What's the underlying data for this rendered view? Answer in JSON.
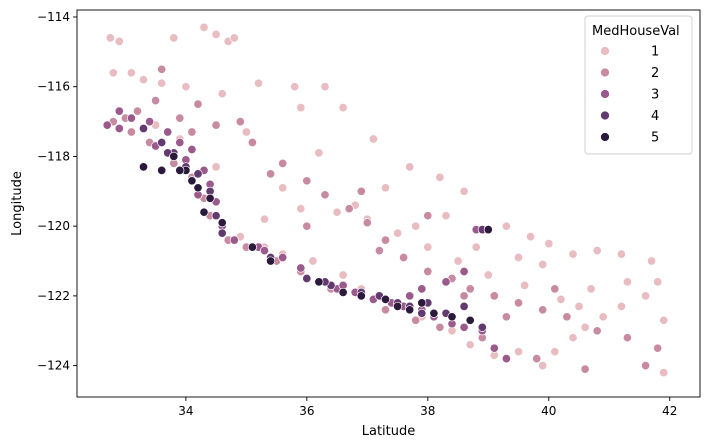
{
  "chart_data": {
    "type": "scatter",
    "title": "",
    "xlabel": "Latitude",
    "ylabel": "Longitude",
    "xlim": [
      32.2,
      42.5
    ],
    "ylim": [
      -124.9,
      -113.8
    ],
    "xticks": [
      34,
      36,
      38,
      40,
      42
    ],
    "yticks": [
      -114,
      -116,
      -118,
      -120,
      -122,
      -124
    ],
    "grid": false,
    "legend": {
      "title": "MedHouseVal",
      "placement": "top-right",
      "entries": [
        {
          "label": "1",
          "color": "#e8bcc0"
        },
        {
          "label": "2",
          "color": "#c88aa0"
        },
        {
          "label": "3",
          "color": "#9b5a8c"
        },
        {
          "label": "4",
          "color": "#633a70"
        },
        {
          "label": "5",
          "color": "#2b1a3c"
        }
      ]
    },
    "series": [
      {
        "name": "1",
        "points": [
          [
            32.75,
            -114.6
          ],
          [
            32.9,
            -114.7
          ],
          [
            33.8,
            -114.6
          ],
          [
            34.3,
            -114.3
          ],
          [
            34.5,
            -114.5
          ],
          [
            34.7,
            -114.7
          ],
          [
            34.8,
            -114.6
          ],
          [
            32.8,
            -115.6
          ],
          [
            33.1,
            -115.6
          ],
          [
            33.3,
            -115.8
          ],
          [
            33.6,
            -115.9
          ],
          [
            34.0,
            -116.0
          ],
          [
            34.6,
            -116.2
          ],
          [
            35.2,
            -115.9
          ],
          [
            35.8,
            -116.0
          ],
          [
            35.9,
            -116.6
          ],
          [
            36.3,
            -116.0
          ],
          [
            36.6,
            -116.6
          ],
          [
            37.1,
            -117.5
          ],
          [
            37.7,
            -118.3
          ],
          [
            38.2,
            -118.6
          ],
          [
            38.6,
            -119.0
          ],
          [
            39.0,
            -120.1
          ],
          [
            39.3,
            -120.0
          ],
          [
            39.7,
            -120.3
          ],
          [
            40.0,
            -120.5
          ],
          [
            40.4,
            -120.8
          ],
          [
            40.8,
            -120.7
          ],
          [
            41.2,
            -120.8
          ],
          [
            41.3,
            -121.6
          ],
          [
            41.7,
            -121.0
          ],
          [
            41.8,
            -121.6
          ],
          [
            41.6,
            -122.0
          ],
          [
            41.2,
            -122.3
          ],
          [
            40.9,
            -122.6
          ],
          [
            40.6,
            -122.9
          ],
          [
            40.4,
            -123.2
          ],
          [
            40.1,
            -123.6
          ],
          [
            39.9,
            -124.0
          ],
          [
            39.5,
            -123.6
          ],
          [
            39.1,
            -123.7
          ],
          [
            38.7,
            -123.4
          ],
          [
            38.4,
            -123.0
          ],
          [
            37.9,
            -122.6
          ],
          [
            37.5,
            -122.3
          ],
          [
            36.9,
            -121.8
          ],
          [
            36.6,
            -121.4
          ],
          [
            36.1,
            -121.0
          ],
          [
            35.6,
            -120.8
          ],
          [
            35.3,
            -120.6
          ],
          [
            34.9,
            -120.3
          ],
          [
            35.3,
            -119.8
          ],
          [
            35.9,
            -119.5
          ],
          [
            36.5,
            -119.6
          ],
          [
            37.0,
            -119.8
          ],
          [
            37.5,
            -120.2
          ],
          [
            38.0,
            -120.6
          ],
          [
            38.5,
            -121.0
          ],
          [
            39.0,
            -121.4
          ],
          [
            39.6,
            -121.7
          ],
          [
            40.2,
            -122.1
          ],
          [
            40.5,
            -122.3
          ],
          [
            39.9,
            -121.1
          ],
          [
            38.8,
            -120.6
          ],
          [
            37.8,
            -120.0
          ],
          [
            36.8,
            -119.4
          ],
          [
            35.6,
            -118.9
          ],
          [
            34.5,
            -118.3
          ],
          [
            33.9,
            -117.5
          ],
          [
            33.5,
            -117.1
          ],
          [
            35.0,
            -117.3
          ],
          [
            36.2,
            -117.9
          ],
          [
            37.3,
            -118.9
          ],
          [
            38.3,
            -119.7
          ],
          [
            39.5,
            -120.9
          ],
          [
            40.7,
            -121.8
          ],
          [
            41.9,
            -122.7
          ],
          [
            41.9,
            -124.2
          ]
        ]
      },
      {
        "name": "2",
        "points": [
          [
            32.8,
            -117.0
          ],
          [
            33.0,
            -116.9
          ],
          [
            33.2,
            -116.7
          ],
          [
            33.5,
            -116.4
          ],
          [
            33.9,
            -116.9
          ],
          [
            34.1,
            -117.3
          ],
          [
            34.2,
            -116.5
          ],
          [
            34.5,
            -117.1
          ],
          [
            34.9,
            -117.0
          ],
          [
            35.1,
            -117.6
          ],
          [
            35.6,
            -118.2
          ],
          [
            36.0,
            -118.7
          ],
          [
            36.3,
            -119.1
          ],
          [
            36.7,
            -119.5
          ],
          [
            37.0,
            -119.9
          ],
          [
            37.3,
            -120.4
          ],
          [
            37.6,
            -120.9
          ],
          [
            38.0,
            -121.3
          ],
          [
            38.4,
            -121.5
          ],
          [
            38.7,
            -121.8
          ],
          [
            39.1,
            -122.0
          ],
          [
            39.5,
            -122.2
          ],
          [
            39.9,
            -122.4
          ],
          [
            40.3,
            -122.6
          ],
          [
            40.8,
            -123.0
          ],
          [
            41.3,
            -123.2
          ],
          [
            41.8,
            -123.5
          ],
          [
            41.6,
            -124.0
          ],
          [
            40.6,
            -124.1
          ],
          [
            39.8,
            -123.8
          ],
          [
            38.9,
            -123.2
          ],
          [
            38.2,
            -122.9
          ],
          [
            37.8,
            -122.7
          ],
          [
            37.3,
            -122.4
          ],
          [
            36.8,
            -121.9
          ],
          [
            36.4,
            -121.8
          ],
          [
            35.9,
            -121.3
          ],
          [
            35.5,
            -121.0
          ],
          [
            35.0,
            -120.6
          ],
          [
            34.7,
            -120.4
          ],
          [
            34.4,
            -119.7
          ],
          [
            34.3,
            -119.2
          ],
          [
            34.1,
            -118.6
          ],
          [
            33.8,
            -118.2
          ],
          [
            33.4,
            -117.6
          ],
          [
            33.1,
            -117.3
          ],
          [
            36.0,
            -120.0
          ],
          [
            37.2,
            -120.7
          ],
          [
            38.6,
            -122.0
          ],
          [
            39.3,
            -122.6
          ],
          [
            40.1,
            -121.8
          ],
          [
            38.0,
            -119.7
          ],
          [
            36.9,
            -119.0
          ],
          [
            35.4,
            -118.5
          ],
          [
            33.6,
            -115.5
          ]
        ]
      },
      {
        "name": "3",
        "points": [
          [
            32.7,
            -117.1
          ],
          [
            32.9,
            -117.2
          ],
          [
            33.1,
            -116.9
          ],
          [
            33.4,
            -117.0
          ],
          [
            33.7,
            -117.3
          ],
          [
            33.9,
            -117.6
          ],
          [
            34.1,
            -117.8
          ],
          [
            34.0,
            -118.1
          ],
          [
            34.3,
            -118.4
          ],
          [
            34.4,
            -118.8
          ],
          [
            34.5,
            -119.3
          ],
          [
            34.2,
            -119.1
          ],
          [
            34.6,
            -120.0
          ],
          [
            34.8,
            -120.4
          ],
          [
            35.2,
            -120.6
          ],
          [
            35.6,
            -120.9
          ],
          [
            35.9,
            -121.2
          ],
          [
            36.2,
            -121.6
          ],
          [
            36.5,
            -121.8
          ],
          [
            36.8,
            -121.9
          ],
          [
            37.1,
            -122.1
          ],
          [
            37.4,
            -122.2
          ],
          [
            37.6,
            -122.3
          ],
          [
            37.9,
            -122.4
          ],
          [
            38.1,
            -122.6
          ],
          [
            38.4,
            -122.8
          ],
          [
            38.6,
            -122.9
          ],
          [
            38.9,
            -123.0
          ],
          [
            39.1,
            -123.5
          ],
          [
            39.3,
            -123.8
          ],
          [
            38.8,
            -120.1
          ],
          [
            38.6,
            -121.3
          ],
          [
            38.3,
            -121.6
          ],
          [
            37.9,
            -121.8
          ],
          [
            37.7,
            -122.0
          ],
          [
            36.6,
            -121.7
          ],
          [
            35.3,
            -120.7
          ],
          [
            33.5,
            -117.7
          ],
          [
            32.9,
            -116.7
          ]
        ]
      },
      {
        "name": "4",
        "points": [
          [
            33.3,
            -117.2
          ],
          [
            33.6,
            -117.6
          ],
          [
            33.8,
            -117.9
          ],
          [
            34.0,
            -118.3
          ],
          [
            34.2,
            -118.5
          ],
          [
            34.4,
            -119.0
          ],
          [
            34.5,
            -119.7
          ],
          [
            34.6,
            -120.2
          ],
          [
            35.4,
            -120.9
          ],
          [
            36.0,
            -121.5
          ],
          [
            36.4,
            -121.7
          ],
          [
            36.9,
            -121.9
          ],
          [
            37.2,
            -122.0
          ],
          [
            37.5,
            -122.2
          ],
          [
            37.7,
            -122.3
          ],
          [
            37.9,
            -122.5
          ],
          [
            38.0,
            -122.2
          ],
          [
            38.3,
            -122.5
          ],
          [
            38.6,
            -122.3
          ],
          [
            38.9,
            -122.9
          ],
          [
            38.9,
            -120.1
          ],
          [
            33.7,
            -117.9
          ],
          [
            36.3,
            -121.6
          ]
        ]
      },
      {
        "name": "5",
        "points": [
          [
            33.3,
            -118.3
          ],
          [
            33.6,
            -118.4
          ],
          [
            33.8,
            -118.0
          ],
          [
            34.0,
            -118.4
          ],
          [
            34.1,
            -118.7
          ],
          [
            34.2,
            -118.9
          ],
          [
            34.4,
            -119.2
          ],
          [
            34.3,
            -119.6
          ],
          [
            34.6,
            -119.9
          ],
          [
            35.1,
            -120.6
          ],
          [
            35.4,
            -121.0
          ],
          [
            36.2,
            -121.6
          ],
          [
            36.6,
            -121.9
          ],
          [
            36.9,
            -122.0
          ],
          [
            37.3,
            -122.1
          ],
          [
            37.5,
            -122.3
          ],
          [
            37.7,
            -122.4
          ],
          [
            37.9,
            -122.2
          ],
          [
            38.1,
            -122.5
          ],
          [
            38.4,
            -122.6
          ],
          [
            38.7,
            -122.7
          ],
          [
            39.0,
            -120.1
          ],
          [
            33.9,
            -118.4
          ]
        ]
      }
    ]
  }
}
